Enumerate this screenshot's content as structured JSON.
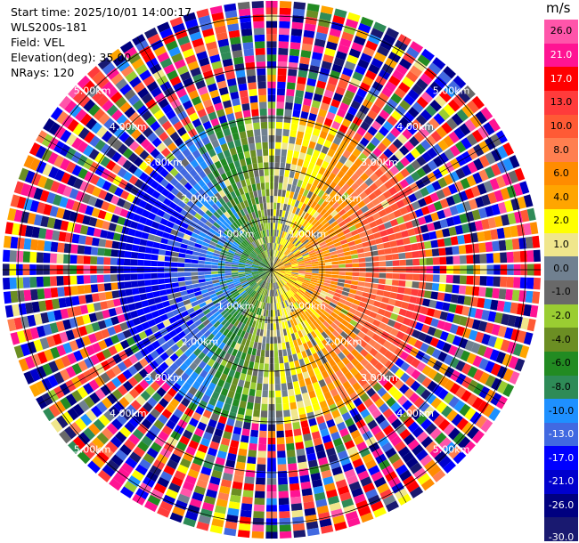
{
  "header": {
    "start_time": "Start time: 2025/10/01 14:00:17",
    "instrument": "WLS200s-181",
    "field": "Field: VEL",
    "elevation": "Elevation(deg): 35.00",
    "nrays": "NRays: 120"
  },
  "colorbar": {
    "unit": "m/s",
    "ticks": [
      "26.0",
      "21.0",
      "17.0",
      "13.0",
      "10.0",
      "8.0",
      "6.0",
      "4.0",
      "2.0",
      "1.0",
      "0.0",
      "-1.0",
      "-2.0",
      "-4.0",
      "-6.0",
      "-8.0",
      "-10.0",
      "-13.0",
      "-17.0",
      "-21.0",
      "-26.0",
      "-30.0"
    ],
    "colors": [
      "#ff55aa",
      "#ff1493",
      "#ff0000",
      "#ff3b3b",
      "#ff5a35",
      "#ff7f50",
      "#ff8c00",
      "#ffa500",
      "#ffff00",
      "#f0e68c",
      "#708090",
      "#696969",
      "#9acd32",
      "#6b8e23",
      "#228b22",
      "#2e8b57",
      "#1e90ff",
      "#4169e1",
      "#0000ff",
      "#0000cd",
      "#000080",
      "#191970"
    ]
  },
  "chart_data": {
    "type": "heatmap",
    "title": "",
    "projection": "polar (PPI)",
    "field": "VEL",
    "units": "m/s",
    "elevation_deg": 35.0,
    "n_rays": 120,
    "range_rings_km": [
      1.0,
      2.0,
      3.0,
      4.0,
      5.0
    ],
    "range_labels": [
      "1.00km",
      "2.00km",
      "3.00km",
      "4.00km",
      "5.00km"
    ],
    "max_range_km": 5.3,
    "color_levels": [
      -30,
      -26,
      -21,
      -17,
      -13,
      -10,
      -8,
      -6,
      -4,
      -2,
      -1,
      0,
      1,
      2,
      4,
      6,
      8,
      10,
      13,
      17,
      21,
      26
    ],
    "velocity_pattern": {
      "inner_range_km": [
        0.0,
        3.0
      ],
      "positive_sector_az_deg": [
        45,
        135
      ],
      "negative_sector_az_deg": [
        225,
        315
      ],
      "peak_positive_ms": 13,
      "peak_negative_ms": -17,
      "outer_range_noise": true
    }
  }
}
